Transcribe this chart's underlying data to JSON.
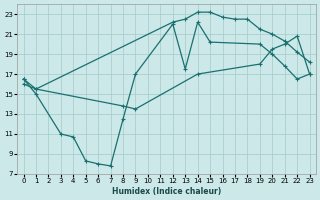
{
  "xlabel": "Humidex (Indice chaleur)",
  "bg_color": "#cce8e8",
  "grid_color": "#aacece",
  "line_color": "#1a7070",
  "xlim": [
    -0.5,
    23.5
  ],
  "ylim": [
    7,
    24
  ],
  "xticks": [
    0,
    1,
    2,
    3,
    4,
    5,
    6,
    7,
    8,
    9,
    10,
    11,
    12,
    13,
    14,
    15,
    16,
    17,
    18,
    19,
    20,
    21,
    22,
    23
  ],
  "yticks": [
    7,
    9,
    11,
    13,
    15,
    17,
    19,
    21,
    23
  ],
  "line1_x": [
    0,
    1,
    3,
    4,
    5,
    6,
    7,
    8,
    9,
    12,
    13,
    14,
    15,
    19,
    20,
    21,
    22,
    23
  ],
  "line1_y": [
    16.5,
    15.0,
    11.0,
    10.7,
    8.3,
    8.0,
    7.8,
    12.5,
    17.0,
    22.0,
    17.5,
    22.2,
    20.2,
    20.0,
    19.0,
    17.8,
    16.5,
    17.0
  ],
  "line2_x": [
    0,
    1,
    12,
    13,
    14,
    15,
    16,
    17,
    18,
    19,
    20,
    21,
    22,
    23
  ],
  "line2_y": [
    16.5,
    15.5,
    22.2,
    22.5,
    23.2,
    23.2,
    22.7,
    22.5,
    22.5,
    21.5,
    21.0,
    20.3,
    19.2,
    18.2
  ],
  "line3_x": [
    0,
    1,
    8,
    9,
    14,
    19,
    20,
    21,
    22,
    23
  ],
  "line3_y": [
    16.0,
    15.5,
    13.8,
    13.5,
    17.0,
    18.0,
    19.5,
    20.0,
    20.8,
    17.0
  ]
}
